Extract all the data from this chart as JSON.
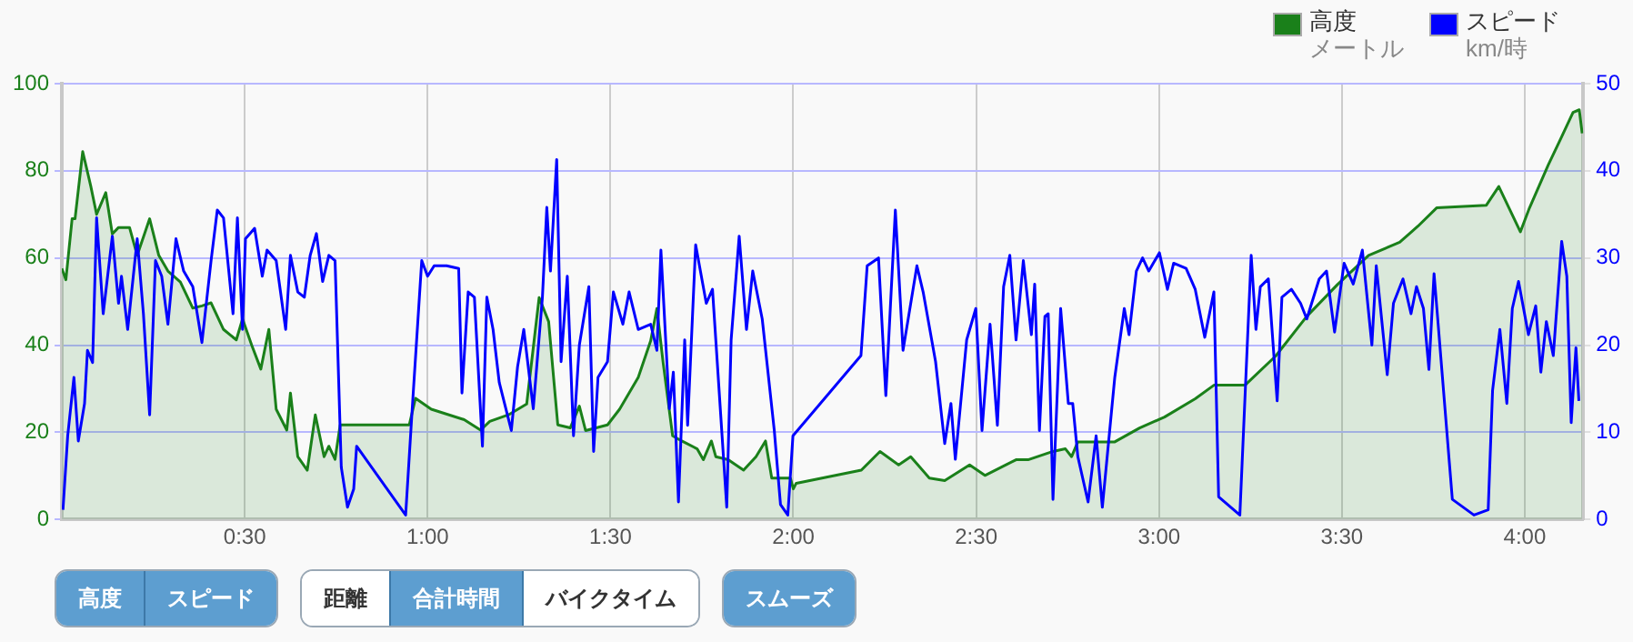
{
  "chart_data": {
    "type": "line",
    "xlim": [
      0,
      4.16
    ],
    "xticks": [
      {
        "value": 0.5,
        "label": "0:30"
      },
      {
        "value": 1,
        "label": "1:00"
      },
      {
        "value": 1.5,
        "label": "1:30"
      },
      {
        "value": 2,
        "label": "2:00"
      },
      {
        "value": 2.5,
        "label": "2:30"
      },
      {
        "value": 3,
        "label": "3:00"
      },
      {
        "value": 3.5,
        "label": "3:30"
      },
      {
        "value": 4,
        "label": "4:00"
      }
    ],
    "ylim": [
      0,
      100
    ],
    "yticks": [
      0,
      20,
      40,
      60,
      80,
      100
    ],
    "y2lim": [
      0,
      50
    ],
    "y2ticks": [
      0,
      10,
      20,
      30,
      40,
      50
    ],
    "grid": true,
    "legend": "top right",
    "marker": "none",
    "annotations": [
      "メートル",
      "km/時",
      "高度",
      "スピード",
      "距離",
      "合計時間",
      "バイクタイム",
      "スムーズ"
    ],
    "series": [
      {
        "name": "高度",
        "type": "area",
        "color": "#1a801a",
        "x": [
          0,
          0.011,
          0.028,
          0.036,
          0.057,
          0.079,
          0.095,
          0.12,
          0.138,
          0.155,
          0.185,
          0.206,
          0.24,
          0.265,
          0.29,
          0.324,
          0.358,
          0.383,
          0.408,
          0.442,
          0.477,
          0.494,
          0.519,
          0.544,
          0.566,
          0.586,
          0.615,
          0.625,
          0.645,
          0.671,
          0.693,
          0.717,
          0.73,
          0.747,
          0.761,
          0.95,
          0.967,
          1.01,
          1.1,
          1.145,
          1.17,
          1.221,
          1.271,
          1.305,
          1.331,
          1.356,
          1.39,
          1.415,
          1.432,
          1.492,
          1.525,
          1.576,
          1.61,
          1.627,
          1.644,
          1.67,
          1.695,
          1.737,
          1.754,
          1.776,
          1.788,
          1.822,
          1.864,
          1.898,
          1.924,
          1.941,
          1.992,
          2,
          2.008,
          2.186,
          2.237,
          2.288,
          2.321,
          2.372,
          2.414,
          2.482,
          2.524,
          2.609,
          2.642,
          2.71,
          2.744,
          2.761,
          2.778,
          2.879,
          2.947,
          3.015,
          3.099,
          3.15,
          3.235,
          3.319,
          3.404,
          3.488,
          3.573,
          3.658,
          3.708,
          3.759,
          3.895,
          3.929,
          3.988,
          4.013,
          4.064,
          4.098,
          4.132,
          4.149,
          4.157
        ],
        "values": [
          57.6,
          55,
          69,
          69,
          84.4,
          76.5,
          70,
          75,
          65.5,
          67,
          67,
          60.6,
          69,
          60.6,
          57,
          54.5,
          48.5,
          49,
          49.7,
          43.6,
          41.2,
          46,
          40,
          34.5,
          43.6,
          25.3,
          20.5,
          29,
          14.4,
          11.3,
          24,
          14.4,
          16.8,
          13.8,
          21.7,
          21.7,
          27.8,
          25.3,
          22.9,
          20.5,
          22.5,
          24,
          26.5,
          50.9,
          45.4,
          21.7,
          21,
          26,
          20.4,
          21.7,
          25.3,
          32.6,
          41,
          48.4,
          36,
          19.2,
          18,
          16.2,
          13.7,
          18,
          14.4,
          13.7,
          11.3,
          14.4,
          18,
          9.5,
          9.5,
          7,
          8.3,
          11.3,
          15.6,
          12.5,
          14.4,
          9.5,
          8.9,
          12.5,
          10.1,
          13.7,
          13.7,
          15.6,
          16.2,
          14.4,
          17.8,
          17.8,
          21,
          23.5,
          27.7,
          30.8,
          30.8,
          37.5,
          46.6,
          53.9,
          60.6,
          63.6,
          67.3,
          71.5,
          72.1,
          76.4,
          66,
          71.5,
          81.3,
          87.3,
          93.4,
          94,
          88.6
        ]
      },
      {
        "name": "スピード",
        "type": "line",
        "axis": "y2",
        "color": "#0000ff",
        "x": [
          0.003,
          0.016,
          0.033,
          0.045,
          0.062,
          0.07,
          0.084,
          0.095,
          0.113,
          0.138,
          0.155,
          0.163,
          0.18,
          0.206,
          0.223,
          0.24,
          0.256,
          0.273,
          0.29,
          0.312,
          0.333,
          0.358,
          0.383,
          0.408,
          0.425,
          0.442,
          0.468,
          0.48,
          0.494,
          0.502,
          0.527,
          0.548,
          0.561,
          0.586,
          0.612,
          0.625,
          0.645,
          0.663,
          0.679,
          0.696,
          0.713,
          0.73,
          0.747,
          0.764,
          0.781,
          0.798,
          0.806,
          0.94,
          0.958,
          0.984,
          1,
          1.018,
          1.052,
          1.085,
          1.094,
          1.111,
          1.128,
          1.15,
          1.162,
          1.179,
          1.196,
          1.229,
          1.246,
          1.263,
          1.289,
          1.314,
          1.326,
          1.336,
          1.353,
          1.365,
          1.382,
          1.399,
          1.415,
          1.441,
          1.454,
          1.466,
          1.492,
          1.508,
          1.534,
          1.551,
          1.576,
          1.61,
          1.627,
          1.638,
          1.661,
          1.672,
          1.686,
          1.703,
          1.711,
          1.733,
          1.762,
          1.779,
          1.818,
          1.83,
          1.852,
          1.872,
          1.889,
          1.915,
          1.948,
          1.965,
          1.985,
          1.999,
          2.185,
          2.202,
          2.233,
          2.253,
          2.279,
          2.3,
          2.338,
          2.355,
          2.389,
          2.414,
          2.431,
          2.443,
          2.474,
          2.499,
          2.516,
          2.538,
          2.558,
          2.575,
          2.592,
          2.609,
          2.629,
          2.651,
          2.66,
          2.673,
          2.688,
          2.697,
          2.71,
          2.731,
          2.752,
          2.764,
          2.778,
          2.806,
          2.828,
          2.845,
          2.879,
          2.905,
          2.918,
          2.938,
          2.955,
          2.972,
          3.001,
          3.023,
          3.04,
          3.074,
          3.099,
          3.125,
          3.15,
          3.163,
          3.221,
          3.252,
          3.265,
          3.277,
          3.299,
          3.323,
          3.336,
          3.362,
          3.387,
          3.404,
          3.438,
          3.458,
          3.48,
          3.506,
          3.531,
          3.556,
          3.582,
          3.594,
          3.624,
          3.641,
          3.667,
          3.689,
          3.704,
          3.723,
          3.738,
          3.752,
          3.802,
          3.861,
          3.9,
          3.912,
          3.932,
          3.951,
          3.966,
          3.983,
          4.01,
          4.03,
          4.044,
          4.059,
          4.078,
          4.101,
          4.115,
          4.127,
          4.14,
          4.148
        ],
        "values": [
          1.1,
          9.6,
          16.3,
          9,
          13.3,
          19.4,
          18,
          34.6,
          23.6,
          32.5,
          24.8,
          27.9,
          21.8,
          32.2,
          23.6,
          12,
          29.7,
          27.9,
          22.4,
          32.2,
          28.5,
          26.7,
          20.3,
          29.7,
          35.5,
          34.6,
          23.6,
          34.6,
          21.8,
          32.2,
          33.4,
          27.9,
          30.9,
          29.7,
          21.8,
          30.3,
          26.1,
          25.5,
          30.3,
          32.8,
          27.3,
          30.3,
          29.7,
          6,
          1.4,
          3.5,
          8.4,
          0.5,
          12.7,
          29.7,
          27.9,
          29.1,
          29.1,
          28.8,
          14.5,
          26.1,
          25.5,
          8.4,
          25.5,
          21.8,
          15.7,
          10.2,
          17.5,
          21.8,
          12.7,
          25.5,
          35.8,
          28.5,
          41.3,
          18.1,
          27.9,
          9.6,
          20,
          26.7,
          7.8,
          16.3,
          18.1,
          26.1,
          22.4,
          26.1,
          21.8,
          22.4,
          19.4,
          30.9,
          12.7,
          16.9,
          2,
          20.6,
          10.8,
          31.5,
          24.8,
          26.4,
          1.4,
          20.6,
          32.5,
          21.8,
          28.5,
          23,
          10.2,
          1.7,
          0.5,
          9.6,
          18.8,
          29.1,
          30,
          14.2,
          35.5,
          19.4,
          29.1,
          26.1,
          18.1,
          8.7,
          13.3,
          6.9,
          20.6,
          24.2,
          10.2,
          22.4,
          10.8,
          26.7,
          30.3,
          20.6,
          29.7,
          21.2,
          27,
          10.2,
          23.3,
          23.6,
          2.3,
          24.2,
          13.3,
          13.3,
          7.2,
          2,
          9.6,
          1.4,
          16.3,
          24.2,
          21.2,
          28.5,
          30,
          28.5,
          30.6,
          26.4,
          29.4,
          28.8,
          26.4,
          20.9,
          26.1,
          2.6,
          0.5,
          30.3,
          21.8,
          26.7,
          27.6,
          13.6,
          25.5,
          26.4,
          24.8,
          23,
          27.6,
          28.5,
          21.5,
          29.4,
          27,
          30.9,
          20,
          29.1,
          16.6,
          24.8,
          27.6,
          23.6,
          26.7,
          24.2,
          17.2,
          28.2,
          2.3,
          0.5,
          1.1,
          14.8,
          21.8,
          13.3,
          24.2,
          27.3,
          21.2,
          24.5,
          16.9,
          22.7,
          18.8,
          31.9,
          27.9,
          11.1,
          19.7,
          13.6
        ]
      }
    ]
  }
}
